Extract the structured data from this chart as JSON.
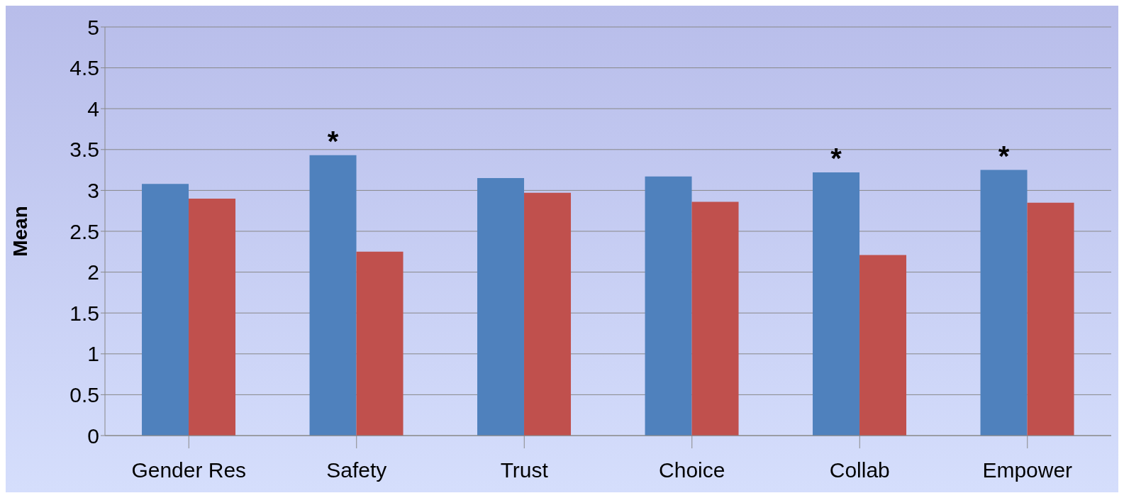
{
  "chart_data": {
    "type": "bar",
    "ylabel": "Mean",
    "categories": [
      "Gender Res",
      "Safety",
      "Trust",
      "Choice",
      "Collab",
      "Empower"
    ],
    "series": [
      {
        "color": "#4f81bd",
        "values": [
          3.08,
          3.43,
          3.15,
          3.17,
          3.22,
          3.25
        ]
      },
      {
        "color": "#c0504d",
        "values": [
          2.9,
          2.25,
          2.97,
          2.86,
          2.21,
          2.85
        ]
      }
    ],
    "ylim": [
      0,
      5
    ],
    "yticks": [
      0,
      0.5,
      1,
      1.5,
      2,
      2.5,
      3,
      3.5,
      4,
      4.5,
      5
    ],
    "grid": "y",
    "legend": false,
    "annotations": [
      {
        "text": "*",
        "x": "Safety",
        "y": 3.43
      },
      {
        "text": "*",
        "x": "Collab",
        "y": 3.22
      },
      {
        "text": "*",
        "x": "Empower",
        "y": 3.25
      }
    ]
  }
}
